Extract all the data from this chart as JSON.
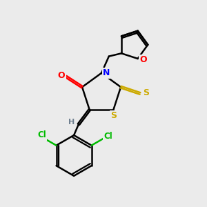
{
  "bg_color": "#ebebeb",
  "atom_colors": {
    "C": "#000000",
    "N": "#0000ff",
    "O": "#ff0000",
    "S": "#ccaa00",
    "Cl": "#00bb00",
    "H": "#708090"
  },
  "figsize": [
    3.0,
    3.0
  ],
  "dpi": 100
}
